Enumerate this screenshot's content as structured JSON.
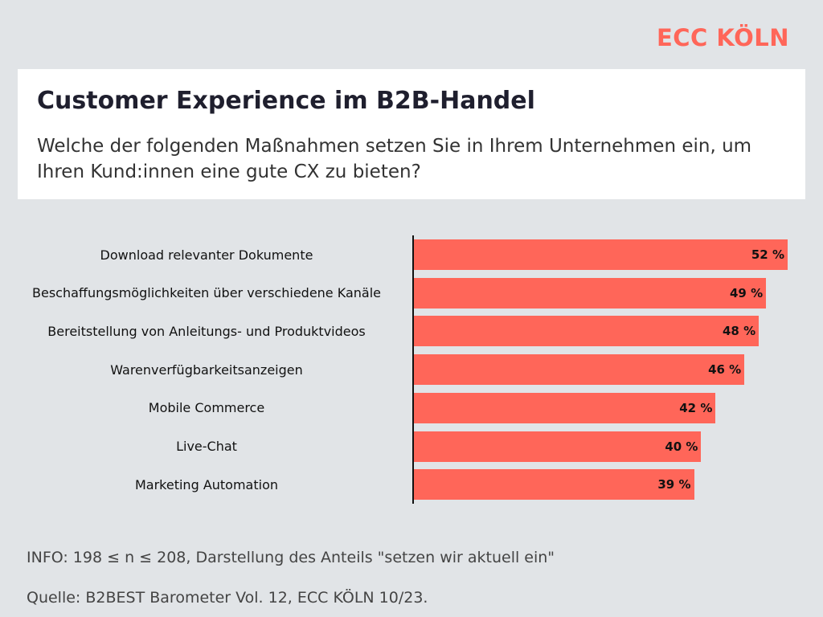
{
  "logo": "ECC KÖLN",
  "header": {
    "title": "Customer Experience im B2B-Handel",
    "subtitle": "Welche der folgenden Maßnahmen setzen Sie in Ihrem Unternehmen ein, um Ihren Kund:innen eine gute CX zu bieten?"
  },
  "chart_data": {
    "type": "bar",
    "orientation": "horizontal",
    "categories": [
      "Download relevanter Dokumente",
      "Beschaffungsmöglichkeiten über verschiedene Kanäle",
      "Bereitstellung von Anleitungs- und Produktvideos",
      "Warenverfügbarkeitsanzeigen",
      "Mobile Commerce",
      "Live-Chat",
      "Marketing Automation"
    ],
    "values": [
      52,
      49,
      48,
      46,
      42,
      40,
      39
    ],
    "value_labels": [
      "52 %",
      "49 %",
      "48 %",
      "46 %",
      "42 %",
      "40 %",
      "39 %"
    ],
    "unit": "%",
    "bar_color": "#ff6659",
    "grid": false
  },
  "footer": {
    "info": "INFO: 198 ≤ n ≤ 208, Darstellung des Anteils \"setzen wir aktuell ein\"",
    "source": "Quelle: B2BEST Barometer Vol. 12, ECC KÖLN 10/23."
  }
}
